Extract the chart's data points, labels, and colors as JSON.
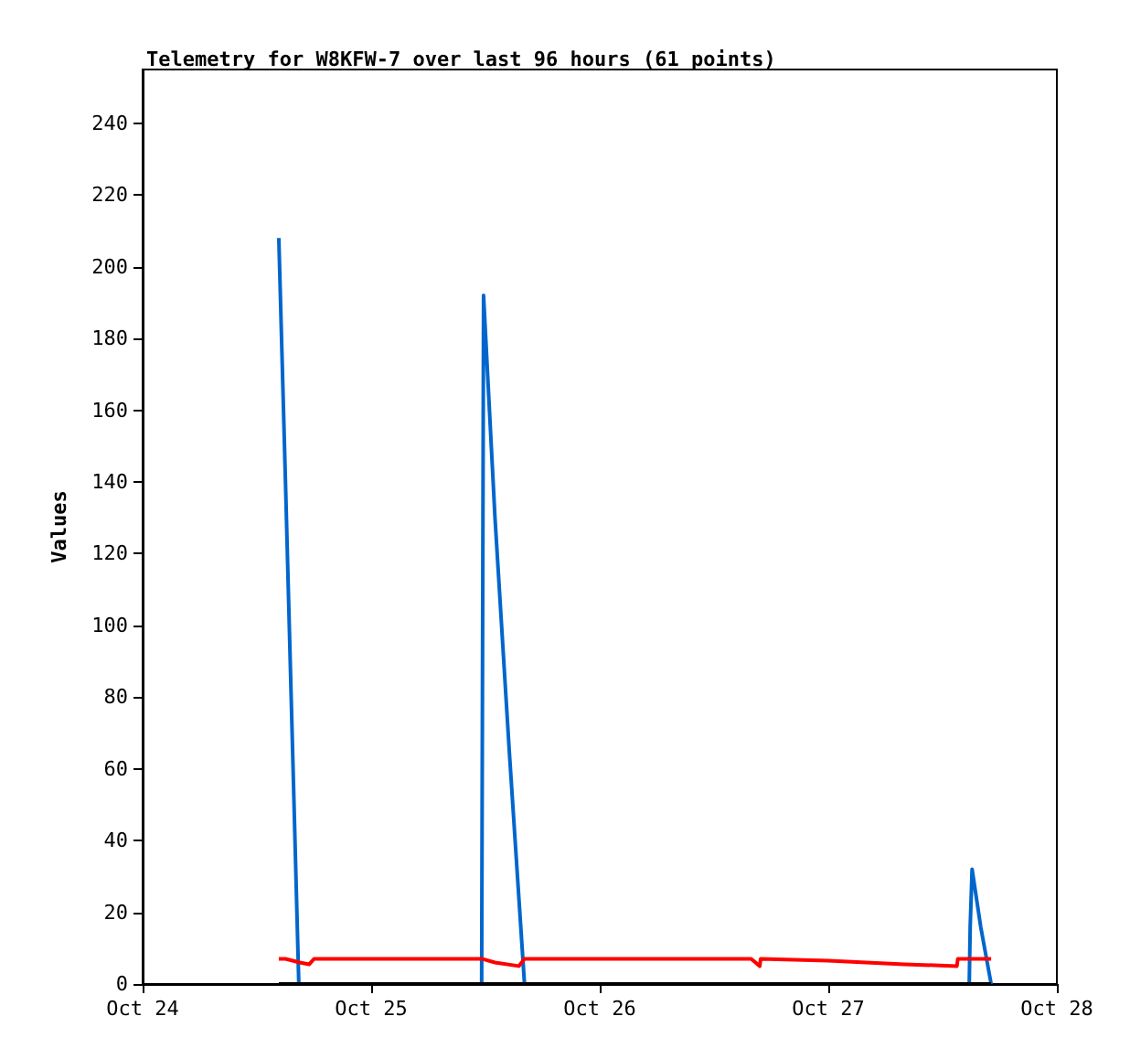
{
  "chart_data": {
    "type": "line",
    "title": "Telemetry for W8KFW-7 over last 96 hours (61 points)",
    "ylabel": "Values",
    "xlim": [
      "--10-24",
      "--10-28"
    ],
    "xticks": [
      {
        "value": "--10-24",
        "label": "Oct 24"
      },
      {
        "value": "--10-25",
        "label": "Oct 25"
      },
      {
        "value": "--10-26",
        "label": "Oct 26"
      },
      {
        "value": "--10-27",
        "label": "Oct 27"
      },
      {
        "value": "--10-28",
        "label": "Oct 28"
      }
    ],
    "ylim": [
      0,
      255
    ],
    "yticks": [
      0,
      20,
      40,
      60,
      80,
      100,
      120,
      140,
      160,
      180,
      200,
      220,
      240
    ],
    "grid": false,
    "marker": "none",
    "line_style": "solid",
    "series": [
      {
        "color": "#0066cc",
        "x": [
          "--10-24T14:18",
          "--10-24T15:00",
          "--10-24T15:42",
          "--10-24T16:24",
          "--10-25T11:36",
          "--10-25T11:42",
          "--10-25T11:48",
          "--10-25T13:00",
          "--10-25T14:30",
          "--10-25T16:06",
          "--10-27T14:48",
          "--10-27T14:54",
          "--10-27T15:06",
          "--10-27T16:00",
          "--10-27T17:06"
        ],
        "values": [
          208,
          140,
          70,
          0,
          0,
          96,
          192,
          130,
          65,
          0,
          0,
          16,
          32,
          16,
          0
        ]
      },
      {
        "color": "#ff0000",
        "x": [
          "--10-24T14:18",
          "--10-24T15:00",
          "--10-24T16:30",
          "--10-24T17:30",
          "--10-24T18:00",
          "--10-25T11:42",
          "--10-25T13:00",
          "--10-25T15:30",
          "--10-25T16:06",
          "--10-26T15:54",
          "--10-26T16:48",
          "--10-26T16:54",
          "--10-27T00:00",
          "--10-27T08:00",
          "--10-27T13:30",
          "--10-27T13:36",
          "--10-27T17:06"
        ],
        "values": [
          7,
          7,
          6,
          5.5,
          7,
          7,
          6,
          5,
          7,
          7,
          5,
          7,
          6.5,
          5.5,
          5,
          7,
          7
        ]
      },
      {
        "color": "#000000",
        "x": [
          "--10-24T14:18",
          "--10-27T17:06"
        ],
        "values": [
          0,
          0
        ]
      }
    ]
  }
}
